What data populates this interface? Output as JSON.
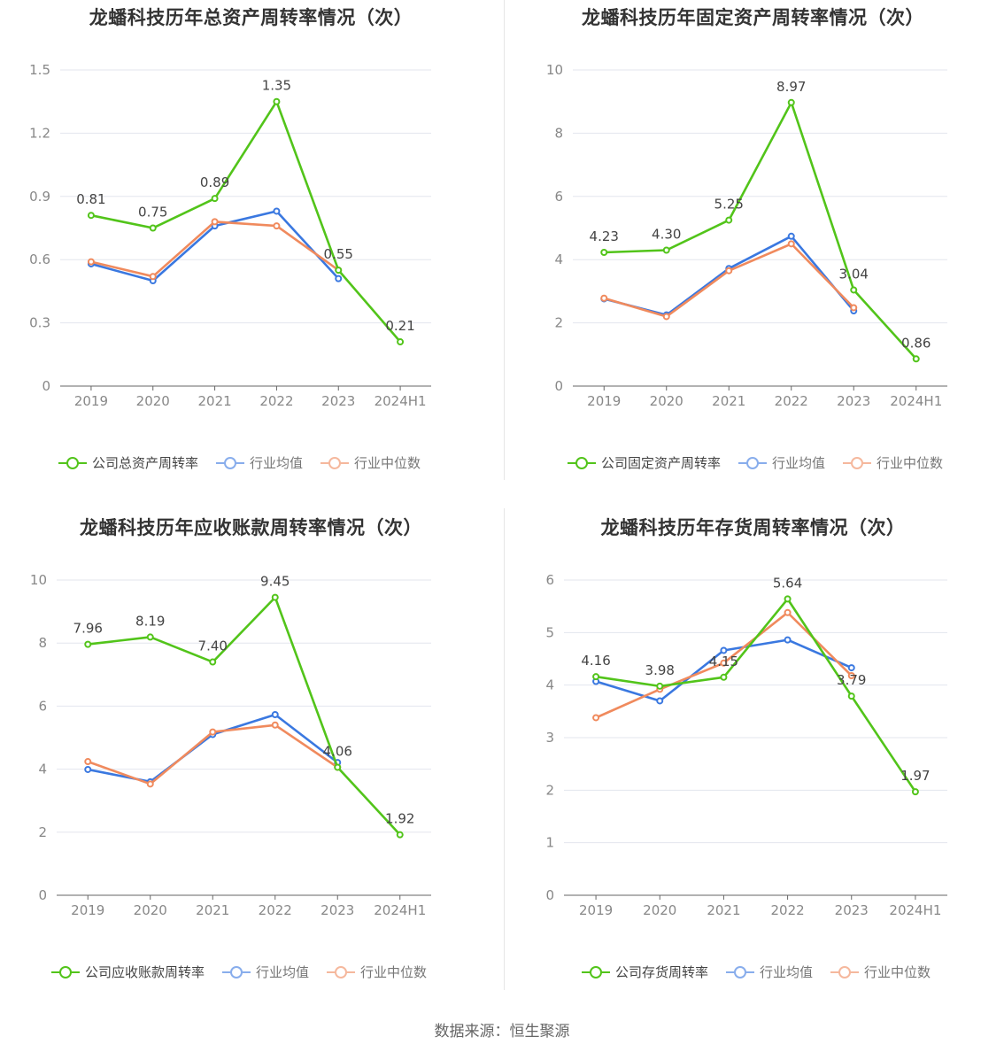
{
  "source": "数据来源：恒生聚源",
  "colors": {
    "company": "#52c41a",
    "avg": "#3a78e0",
    "median": "#f08a5d"
  },
  "legend_labels": {
    "avg": "行业均值",
    "median": "行业中位数"
  },
  "chart_data": [
    {
      "type": "line",
      "title": "龙蟠科技历年总资产周转率情况（次）",
      "categories": [
        "2019",
        "2020",
        "2021",
        "2022",
        "2023",
        "2024H1"
      ],
      "ylim": [
        0,
        1.5
      ],
      "yticks": [
        "0",
        "0.3",
        "0.6",
        "0.9",
        "1.2",
        "1.5"
      ],
      "legend_position": "bottom",
      "series": [
        {
          "name": "公司总资产周转率",
          "key": "company",
          "values": [
            0.81,
            0.75,
            0.89,
            1.35,
            0.55,
            0.21
          ],
          "labels": [
            "0.81",
            "0.75",
            "0.89",
            "1.35",
            "0.55",
            "0.21"
          ]
        },
        {
          "name": "行业均值",
          "key": "avg",
          "values": [
            0.58,
            0.5,
            0.76,
            0.83,
            0.51,
            null
          ]
        },
        {
          "name": "行业中位数",
          "key": "median",
          "values": [
            0.59,
            0.52,
            0.78,
            0.76,
            0.55,
            null
          ]
        }
      ]
    },
    {
      "type": "line",
      "title": "龙蟠科技历年固定资产周转率情况（次）",
      "categories": [
        "2019",
        "2020",
        "2021",
        "2022",
        "2023",
        "2024H1"
      ],
      "ylim": [
        0,
        10
      ],
      "yticks": [
        "0",
        "2",
        "4",
        "6",
        "8",
        "10"
      ],
      "legend_position": "bottom",
      "series": [
        {
          "name": "公司固定资产周转率",
          "key": "company",
          "values": [
            4.23,
            4.3,
            5.25,
            8.97,
            3.04,
            0.86
          ],
          "labels": [
            "4.23",
            "4.30",
            "5.25",
            "8.97",
            "3.04",
            "0.86"
          ]
        },
        {
          "name": "行业均值",
          "key": "avg",
          "values": [
            2.76,
            2.25,
            3.72,
            4.74,
            2.38,
            null
          ]
        },
        {
          "name": "行业中位数",
          "key": "median",
          "values": [
            2.78,
            2.2,
            3.65,
            4.5,
            2.48,
            null
          ]
        }
      ]
    },
    {
      "type": "line",
      "title": "龙蟠科技历年应收账款周转率情况（次）",
      "categories": [
        "2019",
        "2020",
        "2021",
        "2022",
        "2023",
        "2024H1"
      ],
      "ylim": [
        0,
        10
      ],
      "yticks": [
        "0",
        "2",
        "4",
        "6",
        "8",
        "10"
      ],
      "legend_position": "bottom",
      "series": [
        {
          "name": "公司应收账款周转率",
          "key": "company",
          "values": [
            7.96,
            8.19,
            7.4,
            9.45,
            4.06,
            1.92
          ],
          "labels": [
            "7.96",
            "8.19",
            "7.40",
            "9.45",
            "4.06",
            "1.92"
          ]
        },
        {
          "name": "行业均值",
          "key": "avg",
          "values": [
            3.99,
            3.6,
            5.1,
            5.73,
            4.21,
            null
          ]
        },
        {
          "name": "行业中位数",
          "key": "median",
          "values": [
            4.24,
            3.53,
            5.18,
            5.4,
            4.06,
            null
          ]
        }
      ]
    },
    {
      "type": "line",
      "title": "龙蟠科技历年存货周转率情况（次）",
      "categories": [
        "2019",
        "2020",
        "2021",
        "2022",
        "2023",
        "2024H1"
      ],
      "ylim": [
        0,
        6
      ],
      "yticks": [
        "0",
        "1",
        "2",
        "3",
        "4",
        "5",
        "6"
      ],
      "legend_position": "bottom",
      "series": [
        {
          "name": "公司存货周转率",
          "key": "company",
          "values": [
            4.16,
            3.98,
            4.15,
            5.64,
            3.79,
            1.97
          ],
          "labels": [
            "4.16",
            "3.98",
            "4.15",
            "5.64",
            "3.79",
            "1.97"
          ]
        },
        {
          "name": "行业均值",
          "key": "avg",
          "values": [
            4.07,
            3.7,
            4.66,
            4.86,
            4.33,
            null
          ]
        },
        {
          "name": "行业中位数",
          "key": "median",
          "values": [
            3.38,
            3.92,
            4.42,
            5.38,
            4.18,
            null
          ]
        }
      ]
    }
  ]
}
